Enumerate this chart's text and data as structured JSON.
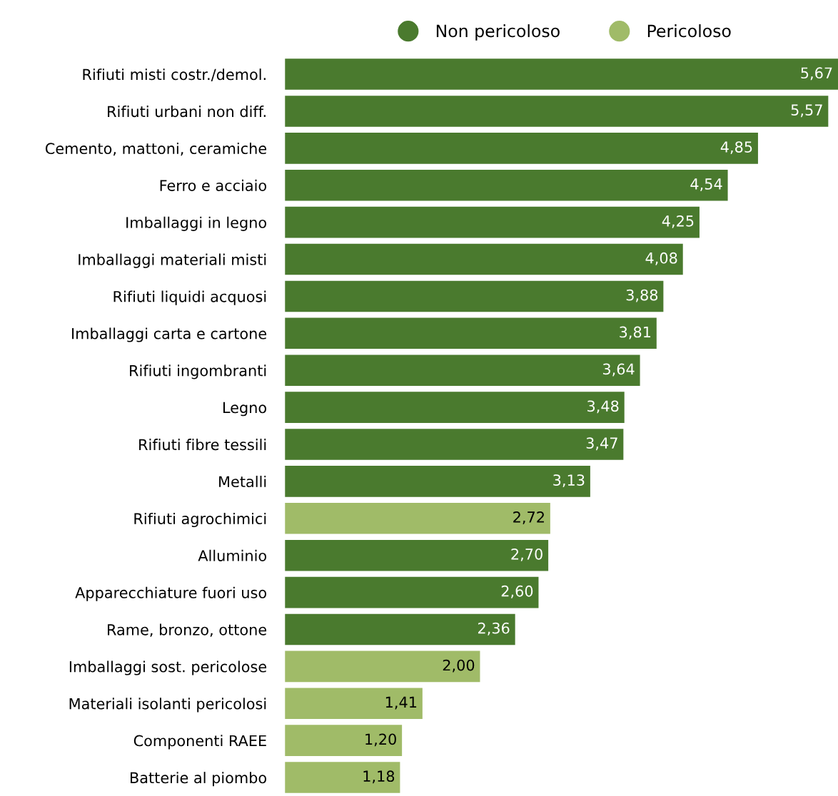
{
  "chart_data": {
    "type": "bar",
    "orientation": "horizontal",
    "legend": "top",
    "grid": false,
    "tick_labels": "y",
    "categories": [
      "Rifiuti misti costr./demol.",
      "Rifiuti urbani non diff.",
      "Cemento, mattoni, ceramiche",
      "Ferro e acciaio",
      "Imballaggi in legno",
      "Imballaggi materiali misti",
      "Rifiuti liquidi acquosi",
      "Imballaggi carta e cartone",
      "Rifiuti ingombranti",
      "Legno",
      "Rifiuti fibre tessili",
      "Metalli",
      "Rifiuti agrochimici",
      "Alluminio",
      "Apparecchiature fuori uso",
      "Rame, bronzo, ottone",
      "Imballaggi sost. pericolose",
      "Materiali isolanti pericolosi",
      "Componenti RAEE",
      "Batterie al piombo"
    ],
    "series": [
      {
        "name": "Non pericoloso",
        "color": "#4a7a2e",
        "values": [
          5.67,
          5.57,
          4.85,
          4.54,
          4.25,
          4.08,
          3.88,
          3.81,
          3.64,
          3.48,
          3.47,
          3.13,
          null,
          2.7,
          2.6,
          2.36,
          null,
          null,
          null,
          null
        ],
        "value_labels": [
          "5,67",
          "5,57",
          "4,85",
          "4,54",
          "4,25",
          "4,08",
          "3,88",
          "3,81",
          "3,64",
          "3,48",
          "3,47",
          "3,13",
          null,
          "2,70",
          "2,60",
          "2,36",
          null,
          null,
          null,
          null
        ]
      },
      {
        "name": "Pericoloso",
        "color": "#a0bb68",
        "values": [
          null,
          null,
          null,
          null,
          null,
          null,
          null,
          null,
          null,
          null,
          null,
          null,
          2.72,
          null,
          null,
          null,
          2.0,
          1.41,
          1.2,
          1.18
        ],
        "value_labels": [
          null,
          null,
          null,
          null,
          null,
          null,
          null,
          null,
          null,
          null,
          null,
          null,
          "2,72",
          null,
          null,
          null,
          "2,00",
          "1,41",
          "1,20",
          "1,18"
        ]
      }
    ]
  }
}
